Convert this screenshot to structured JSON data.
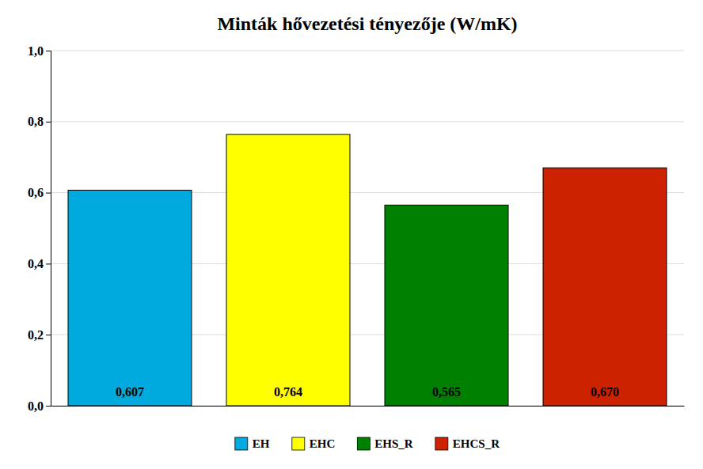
{
  "chart_data": {
    "type": "bar",
    "title": "Minták hővezetési tényezője (W/mK)",
    "categories": [
      "EH",
      "EHC",
      "EHS_R",
      "EHCS_R"
    ],
    "values": [
      0.607,
      0.764,
      0.565,
      0.67
    ],
    "value_labels": [
      "0,607",
      "0,764",
      "0,565",
      "0,670"
    ],
    "data_labels": true,
    "colors": [
      "#00AADF",
      "#FFFF00",
      "#008000",
      "#CC2200"
    ],
    "ylim": [
      0,
      1.0
    ],
    "yticks": [
      {
        "value": 0.0,
        "label": "0,0"
      },
      {
        "value": 0.2,
        "label": "0,2"
      },
      {
        "value": 0.4,
        "label": "0,4"
      },
      {
        "value": 0.6,
        "label": "0,6"
      },
      {
        "value": 0.8,
        "label": "0,8"
      },
      {
        "value": 1.0,
        "label": "1,0"
      }
    ],
    "grid": true,
    "legend": "bottom",
    "tick_labels": "y"
  }
}
